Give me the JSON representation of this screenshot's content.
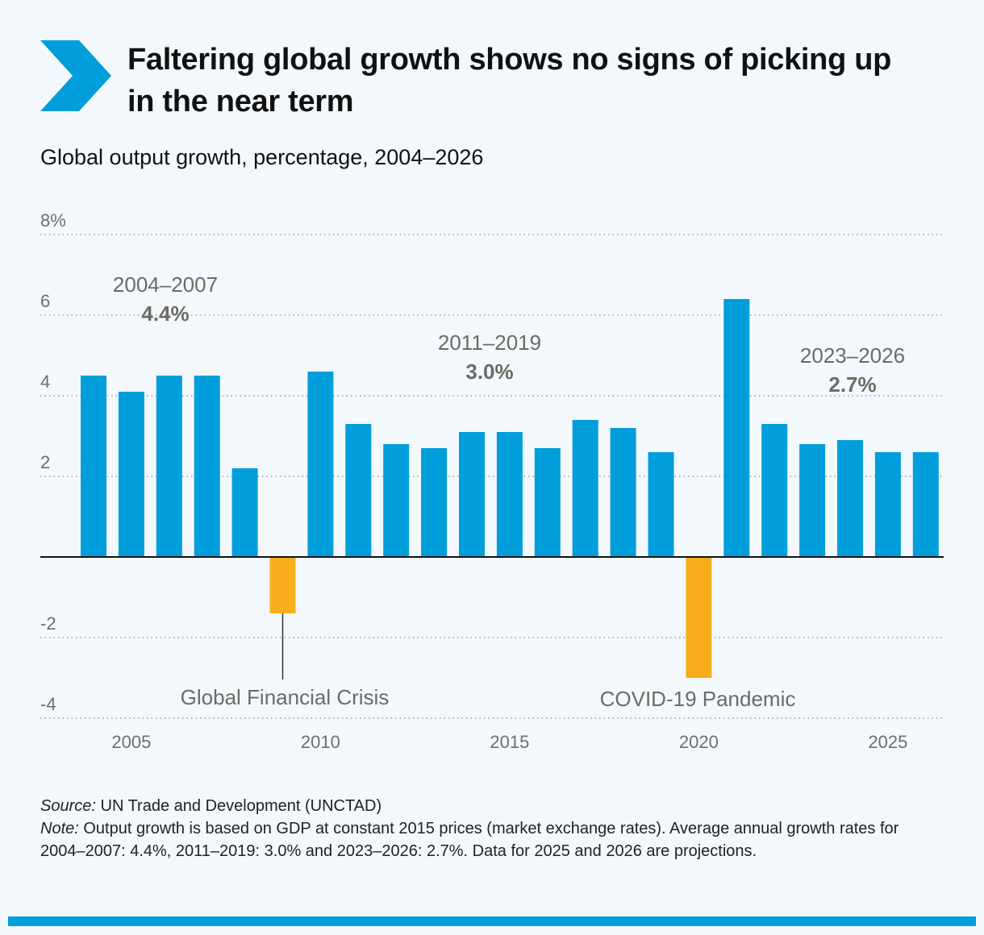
{
  "header": {
    "title": "Faltering global growth shows no signs of picking up in the near term",
    "subtitle": "Global output growth, percentage, 2004–2026",
    "icon": "chevron-right-icon"
  },
  "colors": {
    "positive": "#009edb",
    "negative": "#f8ae1a",
    "accent": "#009edb",
    "background": "#f3f8fc"
  },
  "chart_data": {
    "type": "bar",
    "title": "Global output growth, percentage, 2004–2026",
    "x": [
      2004,
      2005,
      2006,
      2007,
      2008,
      2009,
      2010,
      2011,
      2012,
      2013,
      2014,
      2015,
      2016,
      2017,
      2018,
      2019,
      2020,
      2021,
      2022,
      2023,
      2024,
      2025,
      2026
    ],
    "values": [
      4.5,
      4.1,
      4.5,
      4.5,
      2.2,
      -1.4,
      4.6,
      3.3,
      2.8,
      2.7,
      3.1,
      3.1,
      2.7,
      3.4,
      3.2,
      2.6,
      -3.0,
      6.4,
      3.3,
      2.8,
      2.9,
      2.6,
      2.6
    ],
    "ylim": [
      -4,
      8
    ],
    "yticks": [
      8,
      6,
      4,
      2,
      -2,
      -4
    ],
    "ytick_labels": [
      "8%",
      "6",
      "4",
      "2",
      "-2",
      "-4"
    ],
    "xticks": [
      2005,
      2010,
      2015,
      2020,
      2025
    ],
    "xtick_labels": [
      "2005",
      "2010",
      "2015",
      "2020",
      "2025"
    ],
    "grid": "horizontal dotted",
    "annotations": [
      {
        "label": "2004–2007",
        "value": "4.4%"
      },
      {
        "label": "2011–2019",
        "value": "3.0%"
      },
      {
        "label": "2023–2026",
        "value": "2.7%"
      },
      {
        "label": "Global Financial Crisis",
        "year": 2009
      },
      {
        "label": "COVID-19 Pandemic",
        "year": 2020
      }
    ]
  },
  "footer": {
    "source_label": "Source:",
    "source_text": " UN Trade and Development (UNCTAD)",
    "note_label": "Note:",
    "note_text": " Output growth is based on GDP at constant 2015 prices (market exchange rates). Average annual growth rates for 2004–2007: 4.4%, 2011–2019: 3.0% and 2023–2026: 2.7%. Data for 2025 and 2026 are projections."
  }
}
